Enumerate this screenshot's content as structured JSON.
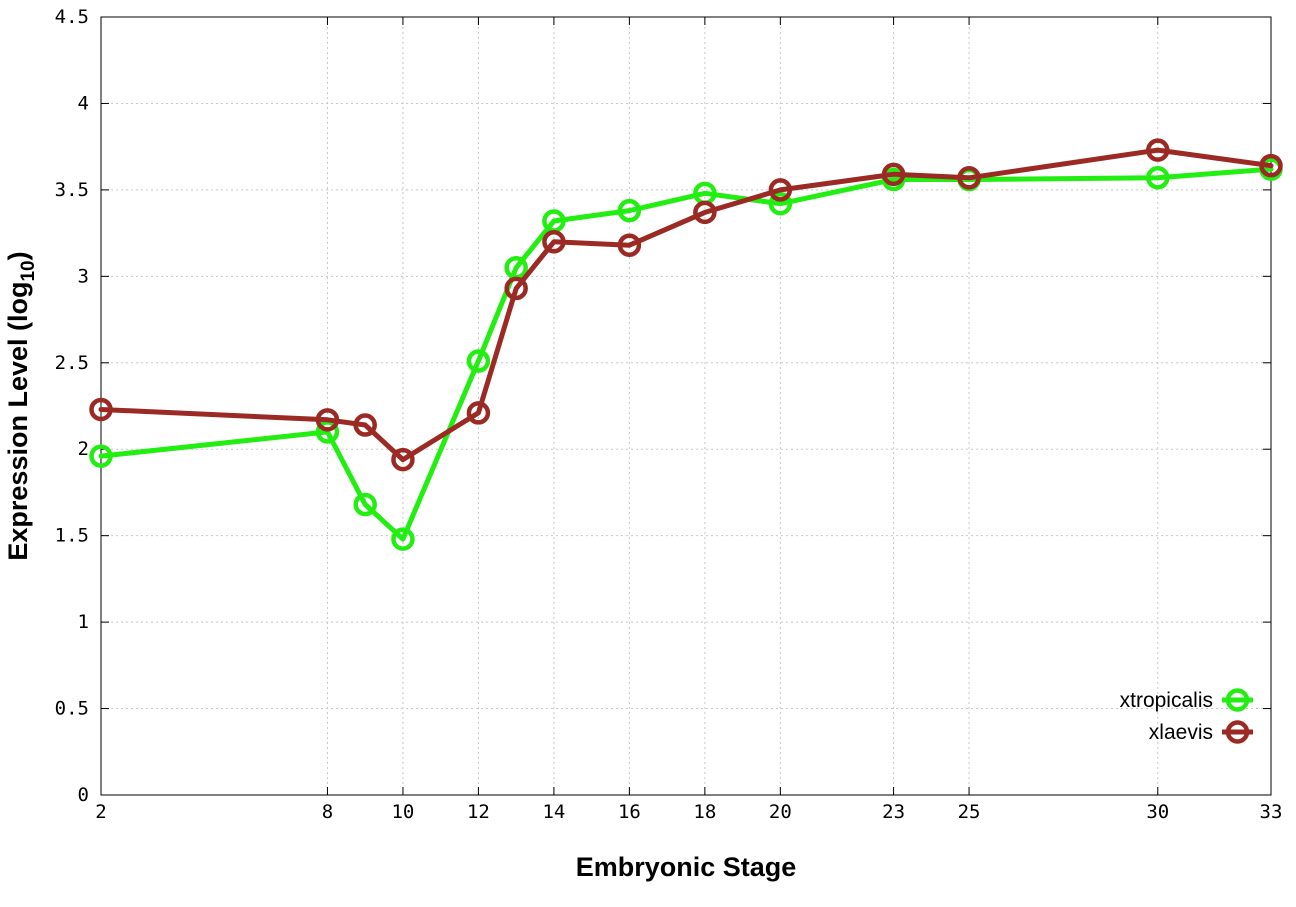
{
  "chart_data": {
    "type": "line",
    "xlabel": "Embryonic Stage",
    "ylabel_main": "Expression Level (log",
    "ylabel_sub": "10",
    "ylabel_close": ")",
    "x_ticks": [
      2,
      8,
      10,
      12,
      14,
      16,
      18,
      20,
      23,
      25,
      30,
      33
    ],
    "y_ticks": [
      {
        "value": 0,
        "label": "0"
      },
      {
        "value": 0.5,
        "label": "0.5"
      },
      {
        "value": 1,
        "label": "1"
      },
      {
        "value": 1.5,
        "label": "1.5"
      },
      {
        "value": 2,
        "label": "2"
      },
      {
        "value": 2.5,
        "label": "2.5"
      },
      {
        "value": 3,
        "label": "3"
      },
      {
        "value": 3.5,
        "label": "3.5"
      },
      {
        "value": 4,
        "label": "4"
      },
      {
        "value": 4.5,
        "label": "4.5"
      }
    ],
    "xlim": [
      2,
      33
    ],
    "ylim": [
      0,
      4.5
    ],
    "grid": true,
    "legend_position": "bottom-right",
    "series": [
      {
        "name": "xtropicalis",
        "color": "#22ee11",
        "points": [
          {
            "x": 2,
            "y": 1.96
          },
          {
            "x": 8,
            "y": 2.1
          },
          {
            "x": 9,
            "y": 1.68
          },
          {
            "x": 10,
            "y": 1.48
          },
          {
            "x": 12,
            "y": 2.51
          },
          {
            "x": 13,
            "y": 3.05
          },
          {
            "x": 14,
            "y": 3.32
          },
          {
            "x": 16,
            "y": 3.38
          },
          {
            "x": 18,
            "y": 3.48
          },
          {
            "x": 20,
            "y": 3.42
          },
          {
            "x": 23,
            "y": 3.56
          },
          {
            "x": 25,
            "y": 3.56
          },
          {
            "x": 30,
            "y": 3.57
          },
          {
            "x": 33,
            "y": 3.62
          }
        ]
      },
      {
        "name": "xlaevis",
        "color": "#9b2a25",
        "points": [
          {
            "x": 2,
            "y": 2.23
          },
          {
            "x": 8,
            "y": 2.17
          },
          {
            "x": 9,
            "y": 2.14
          },
          {
            "x": 10,
            "y": 1.94
          },
          {
            "x": 12,
            "y": 2.21
          },
          {
            "x": 13,
            "y": 2.93
          },
          {
            "x": 14,
            "y": 3.2
          },
          {
            "x": 16,
            "y": 3.18
          },
          {
            "x": 18,
            "y": 3.37
          },
          {
            "x": 20,
            "y": 3.5
          },
          {
            "x": 23,
            "y": 3.59
          },
          {
            "x": 25,
            "y": 3.57
          },
          {
            "x": 30,
            "y": 3.73
          },
          {
            "x": 33,
            "y": 3.64
          }
        ]
      }
    ]
  }
}
